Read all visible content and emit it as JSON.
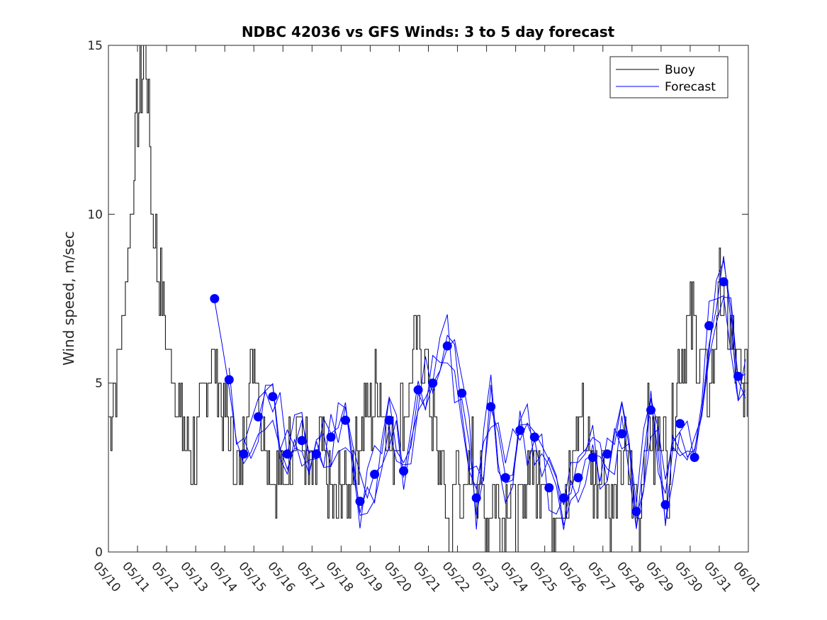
{
  "chart_data": {
    "type": "line",
    "title": "NDBC 42036 vs GFS Winds: 3 to 5 day forecast",
    "xlabel": "",
    "ylabel": "Wind speed, m/sec",
    "xlim": [
      "05/10",
      "06/01"
    ],
    "ylim": [
      0,
      15
    ],
    "yticks": [
      "0",
      "5",
      "10",
      "15"
    ],
    "xticks": [
      "05/10",
      "05/11",
      "05/12",
      "05/13",
      "05/14",
      "05/15",
      "05/16",
      "05/17",
      "05/18",
      "05/19",
      "05/20",
      "05/21",
      "05/22",
      "05/23",
      "05/24",
      "05/25",
      "05/26",
      "05/27",
      "05/28",
      "05/29",
      "05/30",
      "05/31",
      "06/01"
    ],
    "grid": false,
    "legend": {
      "placement": "top-right",
      "entries": [
        "Buoy",
        "Forecast"
      ]
    },
    "colors": {
      "buoy": "#000000",
      "forecast": "#0000ff",
      "points": "#0000ff",
      "axis": "#262626"
    },
    "series": [
      {
        "name": "Buoy",
        "x_days": [
          0.0,
          0.25,
          0.5,
          0.75,
          1.0,
          1.25,
          1.5,
          1.75,
          2.0,
          2.25,
          2.5,
          2.75,
          3.0,
          3.25,
          3.5,
          3.75,
          4.0,
          4.25,
          4.5,
          4.75,
          5.0,
          5.25,
          5.5,
          5.75,
          6.0,
          6.25,
          6.5,
          6.75,
          7.0,
          7.25,
          7.5,
          7.75,
          8.0,
          8.25,
          8.5,
          8.75,
          9.0,
          9.25,
          9.5,
          9.75,
          10.0,
          10.25,
          10.5,
          10.75,
          11.0,
          11.25,
          11.5,
          11.75,
          12.0,
          12.25,
          12.5,
          12.75,
          13.0,
          13.25,
          13.5,
          13.75,
          14.0,
          14.25,
          14.5,
          14.75,
          15.0,
          15.25,
          15.5,
          15.75,
          16.0,
          16.25,
          16.5,
          16.75,
          17.0,
          17.25,
          17.5,
          17.75,
          18.0,
          18.25,
          18.5,
          18.75,
          19.0,
          19.25,
          19.5,
          19.75,
          20.0,
          20.25,
          20.5,
          20.75,
          21.0,
          21.25,
          21.5,
          21.75,
          22.0
        ],
        "values": [
          4,
          5,
          7,
          10,
          13,
          15,
          10,
          8,
          6,
          5,
          4,
          3,
          3,
          4,
          6,
          5,
          4,
          3,
          2,
          5,
          6,
          4,
          3,
          2,
          2,
          3,
          4,
          3,
          2,
          3,
          2,
          1,
          2,
          2,
          3,
          4,
          4,
          5,
          4,
          3,
          4,
          4,
          6,
          6,
          5,
          3,
          2,
          0,
          3,
          1,
          3,
          2,
          1,
          2,
          1,
          2,
          1,
          1,
          3,
          2,
          3,
          1,
          2,
          1,
          3,
          4,
          3,
          2,
          3,
          1,
          2,
          3,
          2,
          1,
          4,
          3,
          4,
          2,
          5,
          6,
          7,
          6,
          5,
          5,
          8,
          7,
          6,
          5,
          5
        ]
      },
      {
        "name": "Forecast",
        "x_days": [
          3.65,
          4.15,
          4.65,
          5.15,
          5.65,
          6.15,
          6.65,
          7.15,
          7.65,
          8.15,
          8.65,
          9.15,
          9.65,
          10.15,
          10.65,
          11.15,
          11.65,
          12.15,
          12.65,
          13.15,
          13.65,
          14.15,
          14.65,
          15.15,
          15.65,
          16.15,
          16.65,
          17.15,
          17.65,
          18.15,
          18.65,
          19.15,
          19.65,
          20.15,
          20.65,
          21.15,
          21.65
        ],
        "values": [
          7.5,
          5.1,
          2.9,
          4.0,
          4.6,
          2.9,
          3.3,
          2.9,
          3.4,
          3.9,
          1.5,
          2.3,
          3.9,
          2.4,
          4.8,
          5.0,
          6.1,
          4.7,
          1.6,
          4.3,
          2.2,
          3.6,
          3.4,
          1.9,
          1.6,
          2.2,
          2.8,
          2.9,
          3.5,
          1.2,
          4.2,
          1.4,
          3.8,
          2.8,
          6.7,
          8.0,
          5.2
        ]
      }
    ]
  }
}
